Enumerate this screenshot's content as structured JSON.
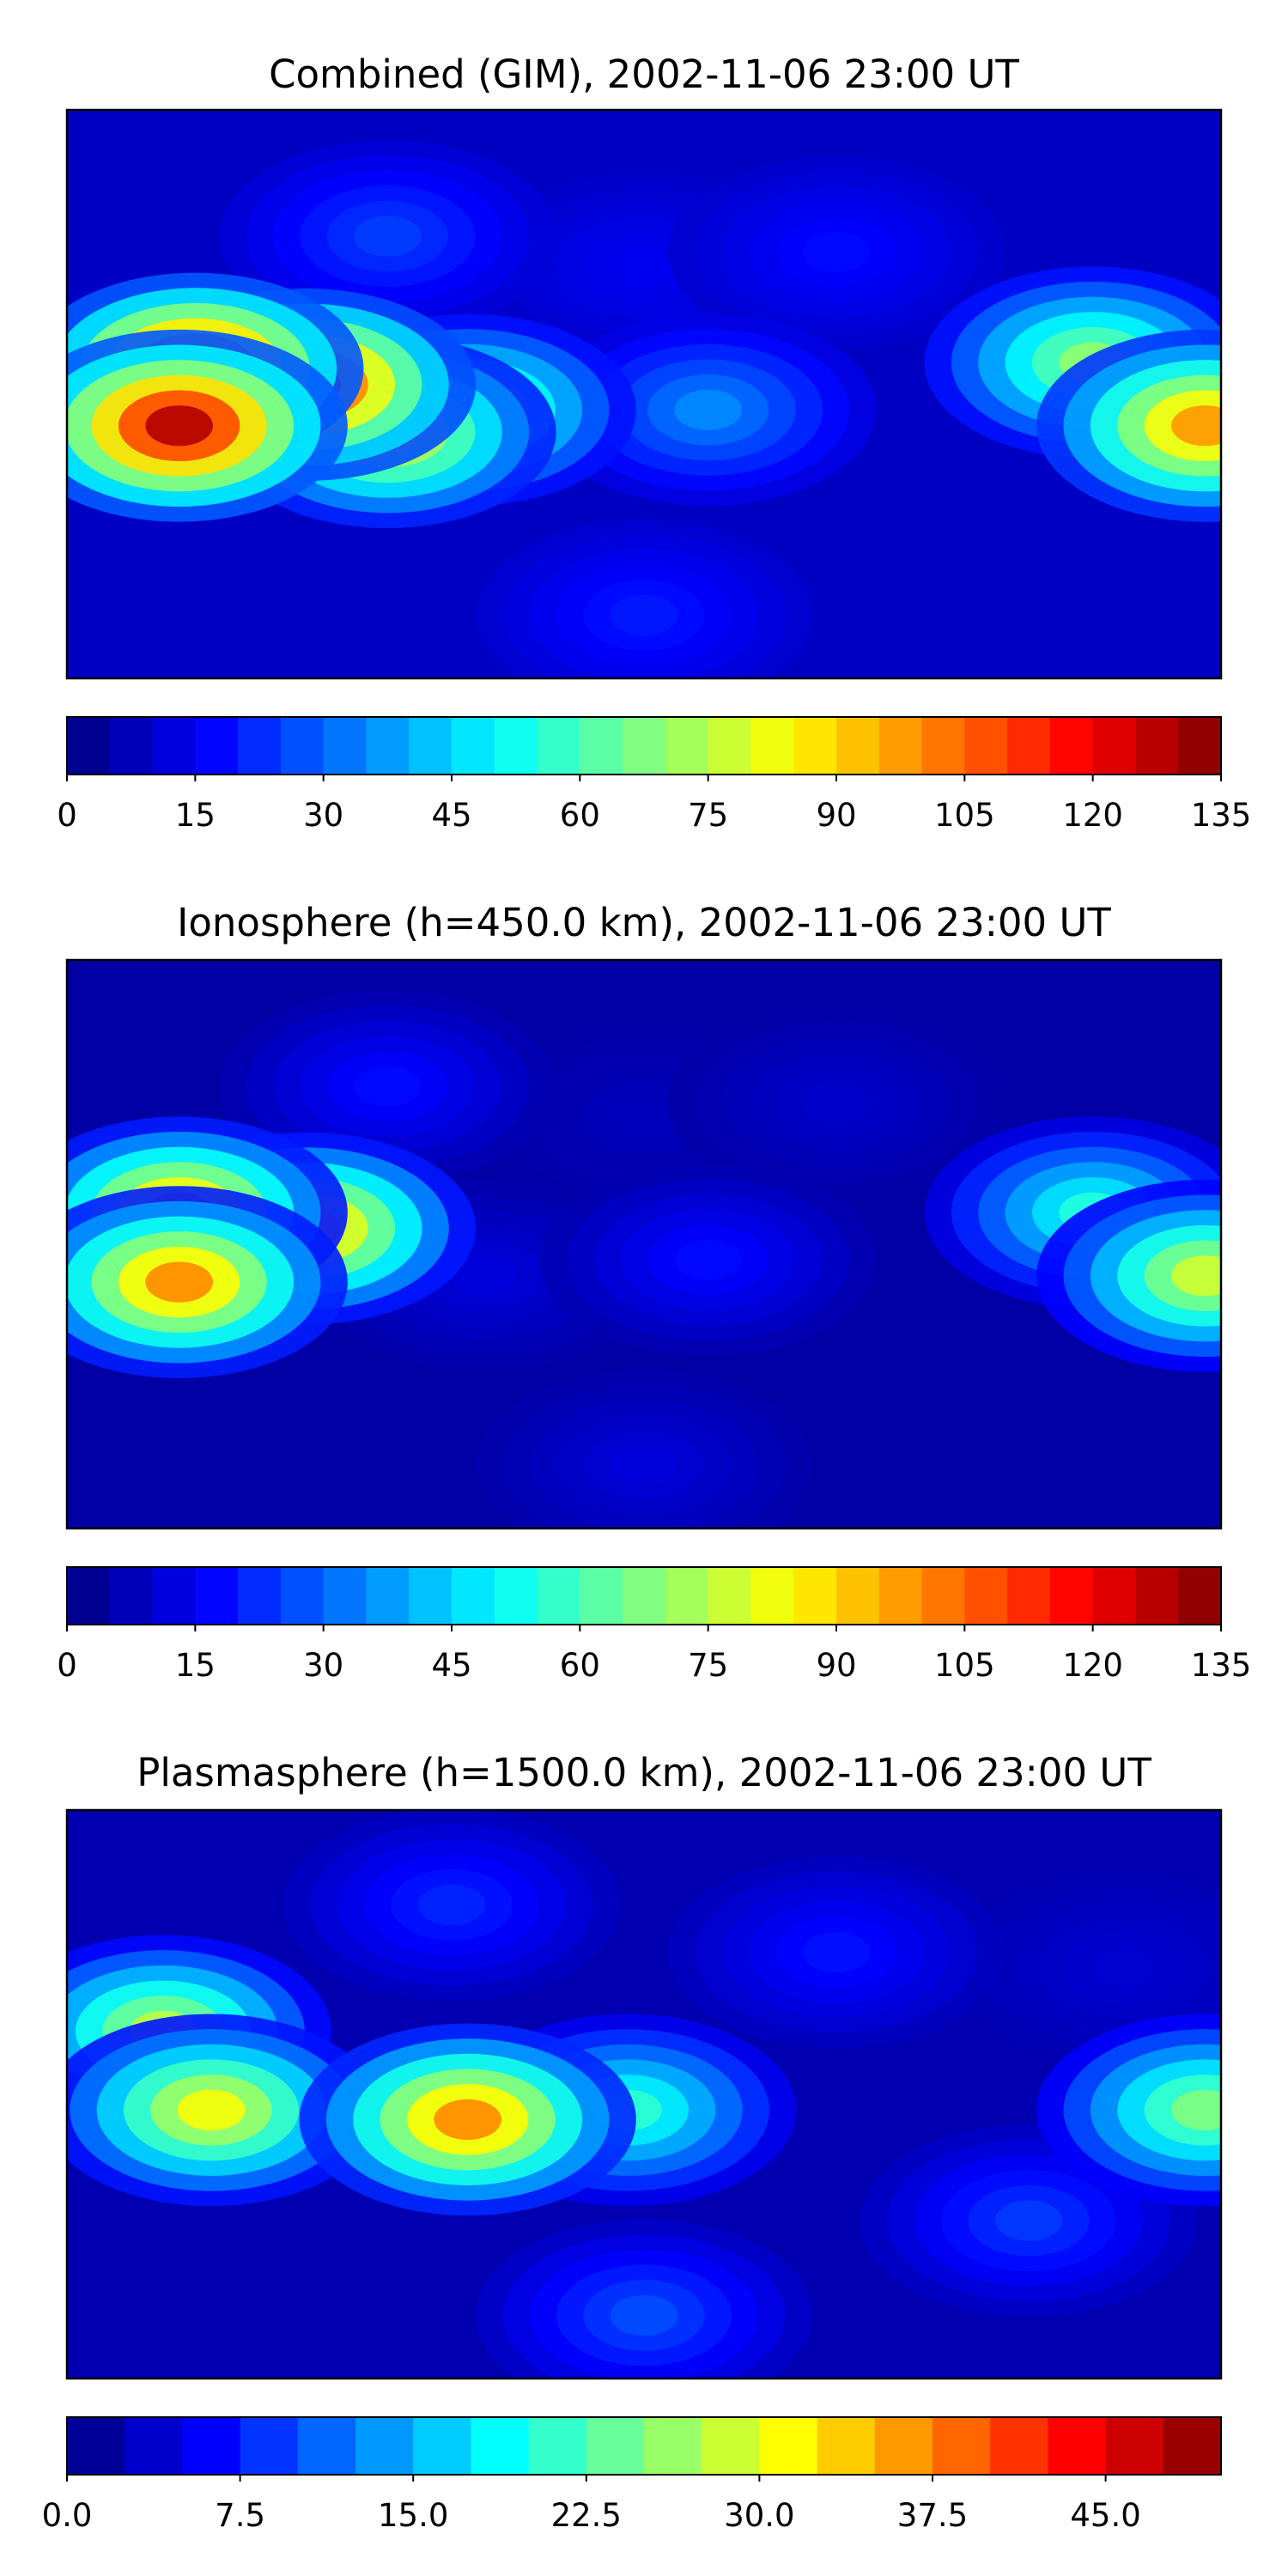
{
  "chart_data": [
    {
      "type": "heatmap",
      "title": "Combined (GIM), 2002-11-06 23:00 UT",
      "colorbar": {
        "min": 0,
        "max": 135,
        "levels": 27,
        "ticks": [
          0,
          15,
          30,
          45,
          60,
          75,
          90,
          105,
          120,
          135
        ],
        "tick_labels": [
          "0",
          "15",
          "30",
          "45",
          "60",
          "75",
          "90",
          "105",
          "120",
          "135"
        ]
      },
      "map_projection": "plate-carree",
      "basemap": "coastlines",
      "regions": [
        {
          "lon": -140,
          "lat": 8,
          "value": 125
        },
        {
          "lon": -145,
          "lat": -10,
          "value": 128
        },
        {
          "lon": -105,
          "lat": 3,
          "value": 118
        },
        {
          "lon": -80,
          "lat": -12,
          "value": 85
        },
        {
          "lon": -55,
          "lat": -5,
          "value": 70
        },
        {
          "lon": 175,
          "lat": -10,
          "value": 98
        },
        {
          "lon": 140,
          "lat": 10,
          "value": 70
        },
        {
          "lon": 0,
          "lat": 40,
          "value": 15
        },
        {
          "lon": 60,
          "lat": 45,
          "value": 18
        },
        {
          "lon": 20,
          "lat": -5,
          "value": 35
        },
        {
          "lon": -80,
          "lat": 50,
          "value": 25
        },
        {
          "lon": 0,
          "lat": -70,
          "value": 20
        }
      ]
    },
    {
      "type": "heatmap",
      "title": "Ionosphere  (h=450.0 km), 2002-11-06 23:00 UT",
      "colorbar": {
        "min": 0,
        "max": 135,
        "levels": 27,
        "ticks": [
          0,
          15,
          30,
          45,
          60,
          75,
          90,
          105,
          120,
          135
        ],
        "tick_labels": [
          "0",
          "15",
          "30",
          "45",
          "60",
          "75",
          "90",
          "105",
          "120",
          "135"
        ]
      },
      "map_projection": "plate-carree",
      "basemap": "coastlines",
      "regions": [
        {
          "lon": -145,
          "lat": 10,
          "value": 98
        },
        {
          "lon": -145,
          "lat": -12,
          "value": 100
        },
        {
          "lon": -105,
          "lat": 5,
          "value": 95
        },
        {
          "lon": -50,
          "lat": -10,
          "value": 12
        },
        {
          "lon": 175,
          "lat": -10,
          "value": 78
        },
        {
          "lon": 140,
          "lat": 10,
          "value": 55
        },
        {
          "lon": 0,
          "lat": 40,
          "value": 8
        },
        {
          "lon": 60,
          "lat": 45,
          "value": 10
        },
        {
          "lon": 20,
          "lat": -5,
          "value": 18
        },
        {
          "lon": -80,
          "lat": 50,
          "value": 18
        },
        {
          "lon": 0,
          "lat": -70,
          "value": 12
        }
      ]
    },
    {
      "type": "heatmap",
      "title": "Plasmasphere (h=1500.0 km), 2002-11-06 23:00 UT",
      "colorbar": {
        "min": 0,
        "max": 50,
        "levels": 20,
        "ticks": [
          0,
          7.5,
          15,
          22.5,
          30,
          37.5,
          45
        ],
        "tick_labels": [
          "0.0",
          "7.5",
          "15.0",
          "22.5",
          "30.0",
          "37.5",
          "45.0"
        ]
      },
      "map_projection": "plate-carree",
      "basemap": "coastlines",
      "regions": [
        {
          "lon": -55,
          "lat": -8,
          "value": 37
        },
        {
          "lon": -135,
          "lat": -5,
          "value": 31
        },
        {
          "lon": -150,
          "lat": 20,
          "value": 28
        },
        {
          "lon": -5,
          "lat": -5,
          "value": 21
        },
        {
          "lon": 175,
          "lat": -5,
          "value": 25
        },
        {
          "lon": 150,
          "lat": 40,
          "value": 4
        },
        {
          "lon": 60,
          "lat": 45,
          "value": 7
        },
        {
          "lon": -60,
          "lat": 60,
          "value": 8
        },
        {
          "lon": 0,
          "lat": -70,
          "value": 10
        },
        {
          "lon": 120,
          "lat": -40,
          "value": 9
        }
      ]
    }
  ]
}
